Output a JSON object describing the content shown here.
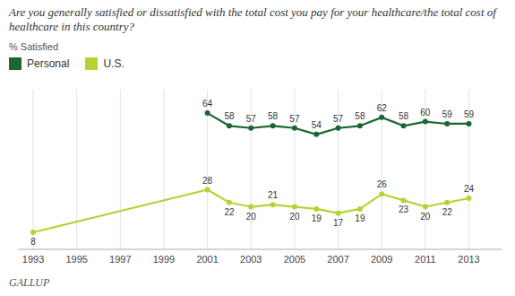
{
  "chart_data": {
    "type": "line",
    "title": "Are you generally satisfied or dissatisfied with the total cost you pay for your healthcare/the total cost of healthcare in this country?",
    "y_label": "% Satisfied",
    "annotations": [
      "GALLUP"
    ],
    "x": [
      1993,
      2001,
      2002,
      2003,
      2004,
      2005,
      2006,
      2007,
      2008,
      2009,
      2010,
      2011,
      2012,
      2013
    ],
    "series": [
      {
        "name": "Personal",
        "color": "#1a6633",
        "marker": "circle",
        "values": [
          null,
          64,
          58,
          57,
          58,
          57,
          54,
          57,
          58,
          62,
          58,
          60,
          59,
          59
        ]
      },
      {
        "name": "U.S.",
        "color": "#b5d334",
        "marker": "circle",
        "values": [
          8,
          28,
          22,
          20,
          21,
          20,
          19,
          17,
          19,
          26,
          23,
          20,
          22,
          24
        ]
      }
    ],
    "xlim": [
      1992.3,
      2014.5
    ],
    "ylim": [
      0,
      75
    ],
    "xticks": [
      1993,
      1995,
      1997,
      1999,
      2001,
      2003,
      2005,
      2007,
      2009,
      2011,
      2013
    ],
    "grid": true,
    "legend": "top",
    "data_labels": true,
    "tick_labels": "x"
  }
}
